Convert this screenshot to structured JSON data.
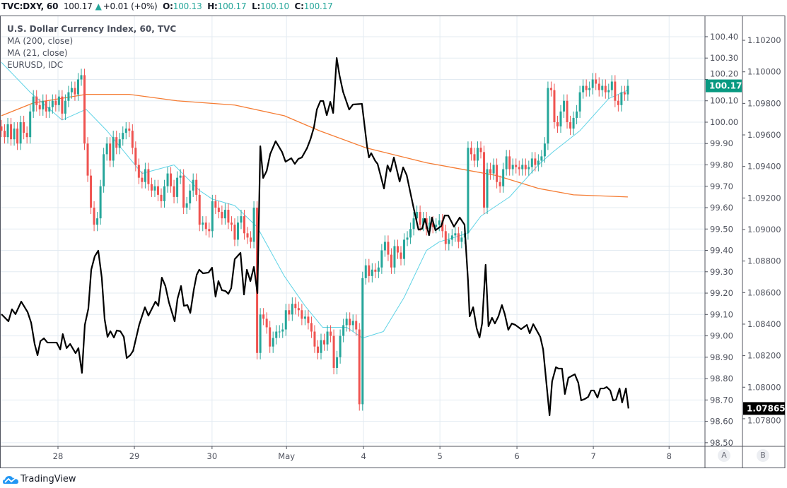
{
  "header": {
    "symbol": "TVC:DXY, 60",
    "last": "100.17",
    "change": "+0.01 (+0%)",
    "o_label": "O:",
    "o": "100.13",
    "h_label": "H:",
    "h": "100.17",
    "l_label": "L:",
    "l": "100.10",
    "c_label": "C:",
    "c": "100.17"
  },
  "legend": {
    "title": "U.S. Dollar Currency Index, 60, TVC",
    "ma200": "MA (200, close)",
    "ma21": "MA (21, close)",
    "compare": "EURUSD, IDC"
  },
  "scale_buttons": {
    "a": "A",
    "b": "B"
  },
  "brand": "TradingView",
  "colors": {
    "up": "#26a69a",
    "down": "#ef5350",
    "ma200": "#f57c33",
    "ma21": "#5fd3e6",
    "eurusd": "#000000",
    "grid": "#e3ebf2",
    "price_tag": "#089981"
  },
  "chart_data": {
    "type": "candlestick",
    "title": "U.S. Dollar Currency Index, 60, TVC",
    "interval": "60",
    "wick": 0.03,
    "open_first": 99.98,
    "closes": [
      99.96,
      99.93,
      99.99,
      99.92,
      99.97,
      99.9,
      100.0,
      99.95,
      99.93,
      100.05,
      100.12,
      100.08,
      100.06,
      100.1,
      100.05,
      100.07,
      100.1,
      100.08,
      100.12,
      100.04,
      100.1,
      100.14,
      100.16,
      100.13,
      100.2,
      100.22,
      99.9,
      99.75,
      99.6,
      99.52,
      99.55,
      99.7,
      99.85,
      99.9,
      99.82,
      99.93,
      99.88,
      99.92,
      99.95,
      99.97,
      99.96,
      99.88,
      99.8,
      99.74,
      99.72,
      99.78,
      99.71,
      99.68,
      99.7,
      99.66,
      99.63,
      99.7,
      99.76,
      99.7,
      99.65,
      99.74,
      99.75,
      99.6,
      99.62,
      99.68,
      99.73,
      99.66,
      99.52,
      99.53,
      99.5,
      99.49,
      99.63,
      99.6,
      99.58,
      99.55,
      99.59,
      99.53,
      99.52,
      99.45,
      99.53,
      99.56,
      99.48,
      99.46,
      99.44,
      99.6,
      98.92,
      99.1,
      99.08,
      99.04,
      98.95,
      98.99,
      99.02,
      99.02,
      99.03,
      99.12,
      99.1,
      99.15,
      99.13,
      99.12,
      99.08,
      99.09,
      99.06,
      99.02,
      98.95,
      98.92,
      98.98,
      98.96,
      99.02,
      99.0,
      98.85,
      98.9,
      99.0,
      99.05,
      99.08,
      99.05,
      99.07,
      99.03,
      98.68,
      99.27,
      99.33,
      99.28,
      99.31,
      99.3,
      99.32,
      99.4,
      99.44,
      99.38,
      99.32,
      99.42,
      99.39,
      99.36,
      99.45,
      99.46,
      99.5,
      99.55,
      99.58,
      99.52,
      99.55,
      99.5,
      99.53,
      99.51,
      99.52,
      99.54,
      99.49,
      99.43,
      99.45,
      99.47,
      99.48,
      99.44,
      99.46,
      99.48,
      99.88,
      99.85,
      99.82,
      99.88,
      99.86,
      99.6,
      99.78,
      99.76,
      99.8,
      99.72,
      99.7,
      99.78,
      99.84,
      99.78,
      99.8,
      99.79,
      99.78,
      99.8,
      99.78,
      99.79,
      99.83,
      99.8,
      99.82,
      99.84,
      99.9,
      100.16,
      100.15,
      100.0,
      99.98,
      100.05,
      100.1,
      100.0,
      99.97,
      100.02,
      100.05,
      100.14,
      100.17,
      100.15,
      100.16,
      100.2,
      100.18,
      100.15,
      100.17,
      100.14,
      100.15,
      100.19,
      100.1,
      100.08,
      100.14,
      100.13,
      100.17
    ],
    "ma200": [
      [
        0,
        100.03
      ],
      [
        10,
        100.09
      ],
      [
        26.5,
        100.13
      ],
      [
        40,
        100.13
      ],
      [
        55,
        100.1
      ],
      [
        73,
        100.08
      ],
      [
        88.5,
        100.03
      ],
      [
        99.5,
        99.96
      ],
      [
        114,
        99.88
      ],
      [
        133,
        99.81
      ],
      [
        144,
        99.78
      ],
      [
        155,
        99.75
      ],
      [
        168,
        99.69
      ],
      [
        179,
        99.66
      ],
      [
        196,
        99.65
      ]
    ],
    "ma21": [
      [
        0,
        100.28
      ],
      [
        9,
        100.14
      ],
      [
        19,
        100.01
      ],
      [
        26.5,
        100.06
      ],
      [
        33,
        99.96
      ],
      [
        44,
        99.76
      ],
      [
        54,
        99.8
      ],
      [
        62,
        99.68
      ],
      [
        66,
        99.64
      ],
      [
        73,
        99.61
      ],
      [
        80,
        99.51
      ],
      [
        88.5,
        99.28
      ],
      [
        95,
        99.14
      ],
      [
        100.5,
        99.04
      ],
      [
        108,
        99.04
      ],
      [
        113,
        98.99
      ],
      [
        119.5,
        99.02
      ],
      [
        126,
        99.18
      ],
      [
        133,
        99.4
      ],
      [
        137,
        99.44
      ],
      [
        146,
        99.48
      ],
      [
        150,
        99.56
      ],
      [
        159,
        99.65
      ],
      [
        168,
        99.8
      ],
      [
        172.5,
        99.86
      ],
      [
        181,
        99.96
      ],
      [
        190,
        100.11
      ],
      [
        196,
        100.15
      ]
    ],
    "eurusd": [
      [
        0,
        1.08463
      ],
      [
        2.2,
        1.08418
      ],
      [
        3.3,
        1.08494
      ],
      [
        4.4,
        1.08463
      ],
      [
        6.2,
        1.08543
      ],
      [
        8.2,
        1.08476
      ],
      [
        9.3,
        1.08409
      ],
      [
        10.4,
        1.08274
      ],
      [
        11.3,
        1.08203
      ],
      [
        12.2,
        1.08292
      ],
      [
        13.3,
        1.0831
      ],
      [
        14.4,
        1.08283
      ],
      [
        17.3,
        1.08283
      ],
      [
        18.4,
        1.08239
      ],
      [
        19.2,
        1.08337
      ],
      [
        20.4,
        1.08248
      ],
      [
        21.5,
        1.08274
      ],
      [
        23.2,
        1.08216
      ],
      [
        24.1,
        1.08248
      ],
      [
        25.2,
        1.08091
      ],
      [
        26.1,
        1.08395
      ],
      [
        27.2,
        1.08498
      ],
      [
        28.1,
        1.08745
      ],
      [
        29.2,
        1.0883
      ],
      [
        30.3,
        1.08866
      ],
      [
        31.4,
        1.08695
      ],
      [
        32.3,
        1.08431
      ],
      [
        33.2,
        1.08319
      ],
      [
        34.1,
        1.08355
      ],
      [
        35.2,
        1.08315
      ],
      [
        36.1,
        1.0836
      ],
      [
        37.2,
        1.08355
      ],
      [
        38.3,
        1.08319
      ],
      [
        39.2,
        1.08185
      ],
      [
        40.3,
        1.08203
      ],
      [
        41.2,
        1.0823
      ],
      [
        43.1,
        1.08395
      ],
      [
        44.9,
        1.08507
      ],
      [
        46,
        1.08454
      ],
      [
        48.2,
        1.08543
      ],
      [
        49.1,
        1.08516
      ],
      [
        50.2,
        1.08695
      ],
      [
        51.3,
        1.08642
      ],
      [
        52.4,
        1.08539
      ],
      [
        54.2,
        1.08418
      ],
      [
        55.1,
        1.08561
      ],
      [
        56.2,
        1.08642
      ],
      [
        57.1,
        1.08516
      ],
      [
        58.2,
        1.08521
      ],
      [
        59.1,
        1.08471
      ],
      [
        60.2,
        1.08619
      ],
      [
        61.1,
        1.08713
      ],
      [
        61.9,
        1.08745
      ],
      [
        63.1,
        1.08722
      ],
      [
        64.8,
        1.08727
      ],
      [
        65.9,
        1.08758
      ],
      [
        67,
        1.08574
      ],
      [
        67.9,
        1.08673
      ],
      [
        69,
        1.08615
      ],
      [
        70.1,
        1.0861
      ],
      [
        71,
        1.08592
      ],
      [
        71.9,
        1.08628
      ],
      [
        73,
        1.08812
      ],
      [
        74.8,
        1.08852
      ],
      [
        75.9,
        1.08588
      ],
      [
        76.8,
        1.08745
      ],
      [
        77.9,
        1.08673
      ],
      [
        79,
        1.08763
      ],
      [
        80.1,
        1.08597
      ],
      [
        81,
        1.09528
      ],
      [
        81.9,
        1.09327
      ],
      [
        83,
        1.09372
      ],
      [
        84.1,
        1.09479
      ],
      [
        85.8,
        1.0956
      ],
      [
        87.8,
        1.09492
      ],
      [
        88.9,
        1.0943
      ],
      [
        90.7,
        1.09452
      ],
      [
        91.8,
        1.09416
      ],
      [
        92.9,
        1.09448
      ],
      [
        94,
        1.09457
      ],
      [
        95.6,
        1.09515
      ],
      [
        96.7,
        1.09573
      ],
      [
        97.8,
        1.09649
      ],
      [
        98.7,
        1.09761
      ],
      [
        99.8,
        1.09815
      ],
      [
        100.7,
        1.09815
      ],
      [
        101.8,
        1.09725
      ],
      [
        102.9,
        1.0981
      ],
      [
        103.8,
        1.09739
      ],
      [
        104.9,
        1.10088
      ],
      [
        105.8,
        1.09976
      ],
      [
        106.9,
        1.09873
      ],
      [
        108.8,
        1.09761
      ],
      [
        110,
        1.09793
      ],
      [
        112.8,
        1.09797
      ],
      [
        114.4,
        1.09528
      ],
      [
        115,
        1.09457
      ],
      [
        115.7,
        1.09484
      ],
      [
        117,
        1.09434
      ],
      [
        117.7,
        1.09416
      ],
      [
        119.7,
        1.0926
      ],
      [
        120.8,
        1.09407
      ],
      [
        121.7,
        1.09367
      ],
      [
        122.8,
        1.09457
      ],
      [
        124.6,
        1.09304
      ],
      [
        125.7,
        1.09394
      ],
      [
        126.8,
        1.09345
      ],
      [
        129,
        1.09134
      ],
      [
        130.5,
        1.08999
      ],
      [
        131.6,
        1.09004
      ],
      [
        132.5,
        1.09067
      ],
      [
        133.8,
        1.08964
      ],
      [
        134.7,
        1.09076
      ],
      [
        135.8,
        1.08995
      ],
      [
        137.6,
        1.09022
      ],
      [
        138.7,
        1.09089
      ],
      [
        139.8,
        1.09089
      ],
      [
        141.6,
        1.09018
      ],
      [
        143.4,
        1.09076
      ],
      [
        144.9,
        1.09031
      ],
      [
        146,
        1.08673
      ],
      [
        146.5,
        1.08449
      ],
      [
        147.6,
        1.08507
      ],
      [
        148.7,
        1.08373
      ],
      [
        149.6,
        1.08315
      ],
      [
        150.4,
        1.08404
      ],
      [
        151.5,
        1.08776
      ],
      [
        152.4,
        1.08386
      ],
      [
        153.5,
        1.0844
      ],
      [
        154.4,
        1.08404
      ],
      [
        155.5,
        1.08449
      ],
      [
        156.6,
        1.08521
      ],
      [
        157.5,
        1.08463
      ],
      [
        158.6,
        1.08364
      ],
      [
        159.7,
        1.08404
      ],
      [
        160.8,
        1.08395
      ],
      [
        162.6,
        1.08368
      ],
      [
        164.4,
        1.08395
      ],
      [
        165.3,
        1.08342
      ],
      [
        166.4,
        1.084
      ],
      [
        168.6,
        1.08319
      ],
      [
        169.5,
        1.08239
      ],
      [
        171.5,
        1.07822
      ],
      [
        172.3,
        1.08037
      ],
      [
        173.5,
        1.08127
      ],
      [
        174.3,
        1.08118
      ],
      [
        175.4,
        1.08118
      ],
      [
        176.3,
        1.07957
      ],
      [
        177.4,
        1.0806
      ],
      [
        179.4,
        1.08082
      ],
      [
        180.5,
        1.08028
      ],
      [
        181.4,
        1.07916
      ],
      [
        182.5,
        1.07925
      ],
      [
        183.6,
        1.07939
      ],
      [
        184.5,
        1.07979
      ],
      [
        185.4,
        1.07979
      ],
      [
        186.5,
        1.07934
      ],
      [
        187.4,
        1.07992
      ],
      [
        188.5,
        1.07992
      ],
      [
        189.4,
        1.08001
      ],
      [
        190.5,
        1.07979
      ],
      [
        191.4,
        1.07916
      ],
      [
        192.3,
        1.07921
      ],
      [
        193.4,
        1.07992
      ],
      [
        194.2,
        1.07903
      ],
      [
        195.4,
        1.07992
      ],
      [
        196.2,
        1.07865
      ]
    ],
    "left_axis": {
      "ticks": [
        "100.40",
        "100.30",
        "100.20",
        "100.10",
        "100.00",
        "99.90",
        "99.80",
        "99.70",
        "99.60",
        "99.50",
        "99.40",
        "99.30",
        "99.20",
        "99.10",
        "99.00",
        "98.90",
        "98.80",
        "98.70",
        "98.60",
        "98.50"
      ],
      "ylim": [
        98.483,
        100.499
      ]
    },
    "right_axis": {
      "ticks": [
        "1.10200",
        "1.10000",
        "1.09800",
        "1.09600",
        "1.09400",
        "1.09200",
        "1.09000",
        "1.08800",
        "1.08600",
        "1.08400",
        "1.08200",
        "1.08000",
        "1.07800"
      ],
      "ylim": [
        1.07625,
        1.10357
      ]
    },
    "x_ticks": [
      {
        "label": "28",
        "t": 17.7
      },
      {
        "label": "29",
        "t": 41.6
      },
      {
        "label": "30",
        "t": 65.9
      },
      {
        "label": "May",
        "t": 89.2
      },
      {
        "label": "4",
        "t": 113.3
      },
      {
        "label": "5",
        "t": 137.2
      },
      {
        "label": "6",
        "t": 161.3
      },
      {
        "label": "7",
        "t": 185.2
      },
      {
        "label": "8",
        "t": 208.9
      }
    ],
    "last_price_label": "100.17",
    "last_eurusd_label": "1.07865",
    "grid": true
  }
}
